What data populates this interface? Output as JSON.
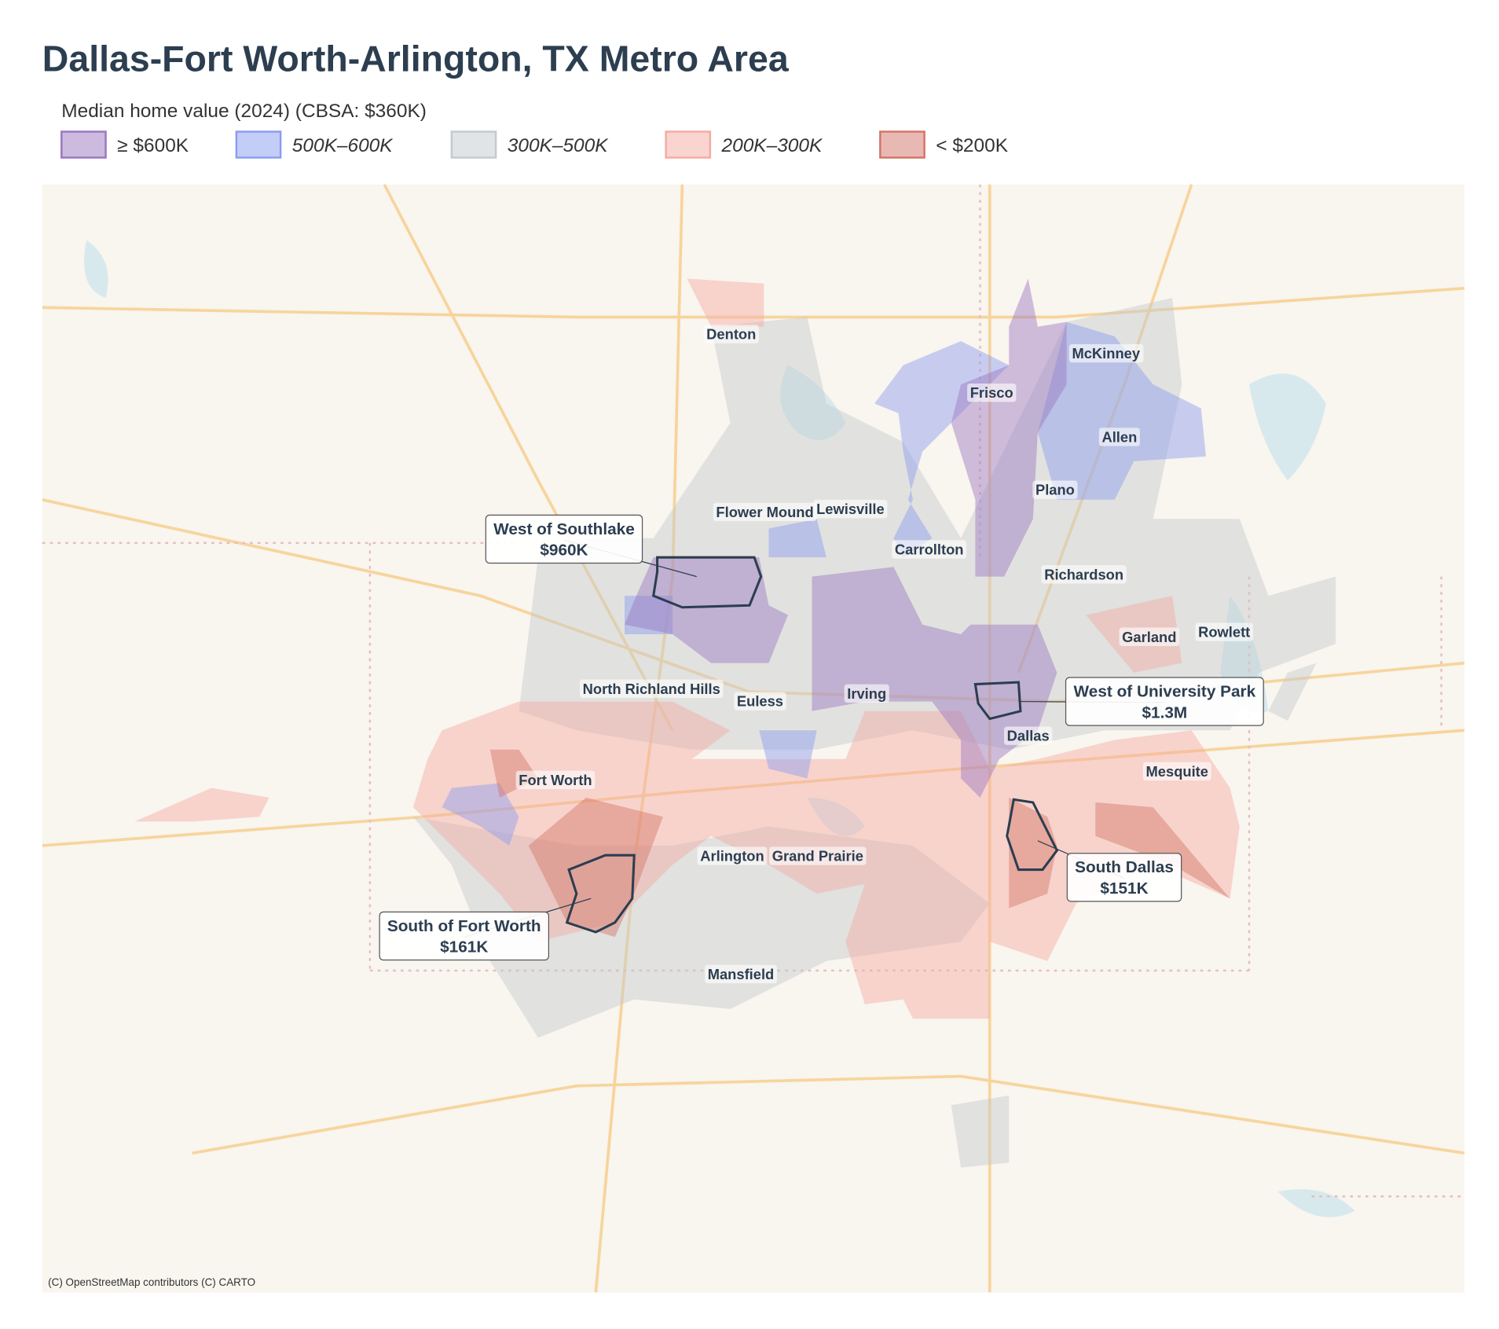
{
  "title": "Dallas-Fort Worth-Arlington, TX Metro Area",
  "legend": {
    "title": "Median home value (2024)  (CBSA: $360K)",
    "items": [
      {
        "label": "≥ $600K",
        "color": "#9a76c0"
      },
      {
        "label": "500K–600K",
        "color": "#8a9cf0"
      },
      {
        "label": "300K–500K",
        "color": "#c4cacd"
      },
      {
        "label": "200K–300K",
        "color": "#f5aaa2"
      },
      {
        "label": "< $200K",
        "color": "#d27466"
      }
    ]
  },
  "cities": [
    "Denton",
    "McKinney",
    "Frisco",
    "Allen",
    "Plano",
    "Flower Mound",
    "Lewisville",
    "Carrollton",
    "Richardson",
    "Garland",
    "Rowlett",
    "North Richland Hills",
    "Euless",
    "Irving",
    "Dallas",
    "Fort Worth",
    "Mesquite",
    "Arlington",
    "Grand Prairie",
    "Mansfield"
  ],
  "callouts": [
    {
      "name": "West of Southlake",
      "value": "$960K"
    },
    {
      "name": "West of University Park",
      "value": "$1.3M"
    },
    {
      "name": "South Dallas",
      "value": "$151K"
    },
    {
      "name": "South of Fort Worth",
      "value": "$161K"
    }
  ],
  "attribution": "(C) OpenStreetMap contributors (C) CARTO"
}
